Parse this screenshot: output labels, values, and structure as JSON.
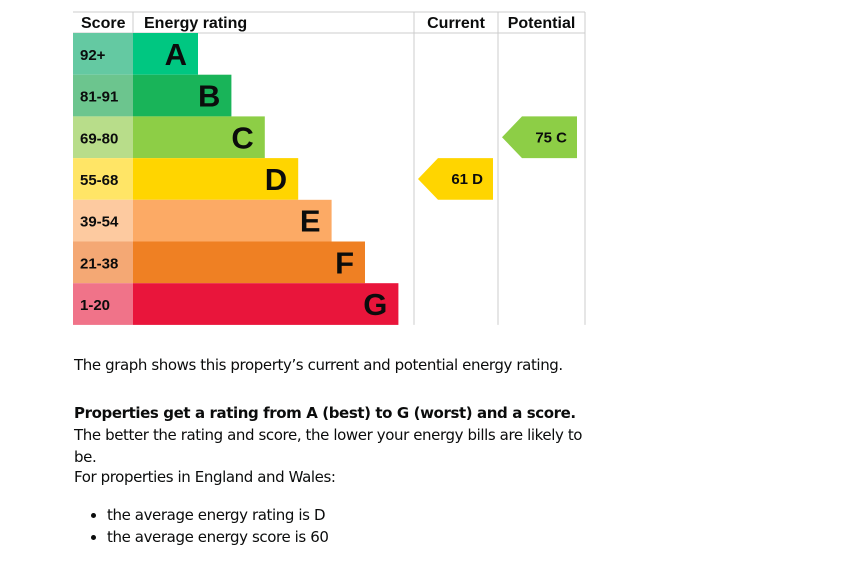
{
  "chart_data": {
    "type": "bar",
    "headers": {
      "score": "Score",
      "rating": "Energy rating",
      "current": "Current",
      "potential": "Potential"
    },
    "bands": [
      {
        "letter": "A",
        "range": "92+",
        "color": "#00c781",
        "score_bg": "#64c9a2"
      },
      {
        "letter": "B",
        "range": "81-91",
        "color": "#19b459",
        "score_bg": "#6cc58e"
      },
      {
        "letter": "C",
        "range": "69-80",
        "color": "#8dce46",
        "score_bg": "#b8dd8a"
      },
      {
        "letter": "D",
        "range": "55-68",
        "color": "#ffd500",
        "score_bg": "#ffe566"
      },
      {
        "letter": "E",
        "range": "39-54",
        "color": "#fcaa65",
        "score_bg": "#fdcaa0"
      },
      {
        "letter": "F",
        "range": "21-38",
        "color": "#ef8023",
        "score_bg": "#f4a874"
      },
      {
        "letter": "G",
        "range": "1-20",
        "color": "#e9153b",
        "score_bg": "#f07389"
      }
    ],
    "current": {
      "score": 61,
      "band": "D",
      "label": "61  D"
    },
    "potential": {
      "score": 75,
      "band": "C",
      "label": "75  C"
    }
  },
  "text": {
    "intro": "The graph shows this property’s current and potential energy rating.",
    "bold": "Properties get a rating from A (best) to G (worst) and a score.",
    "rest": " The better the rating and score, the lower your energy bills are likely to be.",
    "region": "For properties in England and Wales:",
    "bullets": [
      "the average energy rating is D",
      "the average energy score is 60"
    ]
  }
}
